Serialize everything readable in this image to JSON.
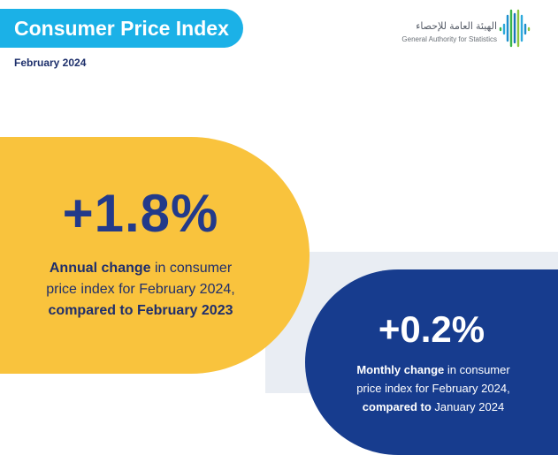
{
  "header": {
    "title": "Consumer Price Index",
    "date": "February 2024"
  },
  "logo": {
    "arabic": "الهيئة العامة للإحصاء",
    "english": "General Authority for Statistics",
    "icon": "gastat-logo-icon"
  },
  "annual": {
    "value": "+1.8%",
    "bold_lead": "Annual change",
    "line1_rest": " in consumer",
    "line2": "price index for February 2024,",
    "line3": "compared to February 2023"
  },
  "monthly": {
    "value": "+0.2%",
    "bold_lead": "Monthly change",
    "line1_rest": " in consumer",
    "line2": "price index for February 2024,",
    "line3_bold": "compared to",
    "line3_rest": " January 2024"
  },
  "colors": {
    "title_bg": "#1bb1e7",
    "yellow": "#f9c33d",
    "navy": "#173c8e",
    "band": "#e9edf3"
  }
}
